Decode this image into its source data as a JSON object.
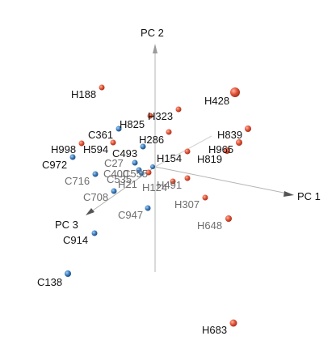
{
  "chart_data": {
    "type": "scatter",
    "title": "",
    "axes": [
      {
        "name": "PC 1"
      },
      {
        "name": "PC 2"
      },
      {
        "name": "PC 3"
      }
    ],
    "grid": false,
    "legend": "none",
    "colors": {
      "H": "#e2553a",
      "C": "#3d7fbf",
      "axis": "#b5b5b5",
      "label_front": "#111111",
      "label_back": "#6e6e6e"
    },
    "points": [
      {
        "label": "H188",
        "group": "H",
        "depth": "front"
      },
      {
        "label": "H428",
        "group": "H",
        "depth": "front"
      },
      {
        "label": "H323",
        "group": "H",
        "depth": "front"
      },
      {
        "label": "H825",
        "group": "H",
        "depth": "front"
      },
      {
        "label": "H286",
        "group": "H",
        "depth": "front"
      },
      {
        "label": "C361",
        "group": "C",
        "depth": "front"
      },
      {
        "label": "H839",
        "group": "H",
        "depth": "front"
      },
      {
        "label": "H998",
        "group": "H",
        "depth": "front"
      },
      {
        "label": "H594",
        "group": "H",
        "depth": "front"
      },
      {
        "label": "H965",
        "group": "H",
        "depth": "front"
      },
      {
        "label": "C493",
        "group": "C",
        "depth": "front"
      },
      {
        "label": "H819",
        "group": "H",
        "depth": "front"
      },
      {
        "label": "H154",
        "group": "H",
        "depth": "front"
      },
      {
        "label": "C972",
        "group": "C",
        "depth": "front"
      },
      {
        "label": "C27",
        "group": "C",
        "depth": "back"
      },
      {
        "label": "C716",
        "group": "C",
        "depth": "back"
      },
      {
        "label": "C400",
        "group": "C",
        "depth": "back"
      },
      {
        "label": "C555",
        "group": "C",
        "depth": "back"
      },
      {
        "label": "C535",
        "group": "C",
        "depth": "back"
      },
      {
        "label": "H21",
        "group": "H",
        "depth": "back"
      },
      {
        "label": "H491",
        "group": "H",
        "depth": "back"
      },
      {
        "label": "H124",
        "group": "H",
        "depth": "back"
      },
      {
        "label": "C708",
        "group": "C",
        "depth": "back"
      },
      {
        "label": "H307",
        "group": "H",
        "depth": "back"
      },
      {
        "label": "C947",
        "group": "C",
        "depth": "back"
      },
      {
        "label": "H648",
        "group": "H",
        "depth": "back"
      },
      {
        "label": "C914",
        "group": "C",
        "depth": "front"
      },
      {
        "label": "C138",
        "group": "C",
        "depth": "front"
      },
      {
        "label": "H683",
        "group": "H",
        "depth": "front"
      }
    ]
  }
}
